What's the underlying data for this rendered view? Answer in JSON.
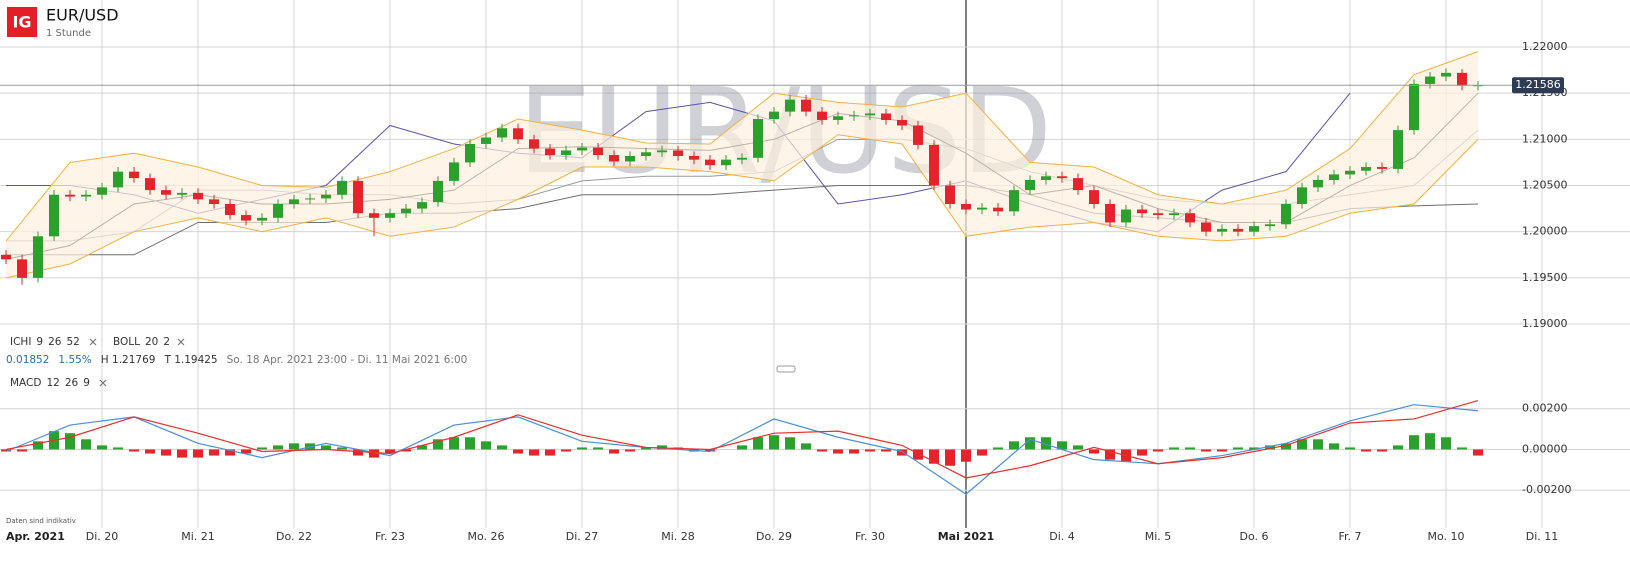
{
  "header": {
    "logo": "IG",
    "symbol": "EUR/USD",
    "interval": "1 Stunde"
  },
  "chart_data": [
    {
      "type": "candlestick",
      "xlim": [
        -0.375,
        93.625
      ],
      "ylim": [
        1.18827,
        1.22509
      ],
      "yticks": [
        {
          "value": 1.22,
          "label": "1.22000"
        },
        {
          "value": 1.215,
          "label": "1.21500"
        },
        {
          "value": 1.21,
          "label": "1.21000"
        },
        {
          "value": 1.205,
          "label": "1.20500"
        },
        {
          "value": 1.2,
          "label": "1.20000"
        },
        {
          "value": 1.195,
          "label": "1.19500"
        },
        {
          "value": 1.19,
          "label": "1.19000"
        }
      ],
      "xticks": [
        {
          "value": 0,
          "label": "Apr. 2021"
        },
        {
          "value": 6,
          "label": "Di. 20"
        },
        {
          "value": 12,
          "label": "Mi. 21"
        },
        {
          "value": 18,
          "label": "Do. 22"
        },
        {
          "value": 24,
          "label": "Fr. 23"
        },
        {
          "value": 30,
          "label": "Mo. 26"
        },
        {
          "value": 36,
          "label": "Di. 27"
        },
        {
          "value": 42,
          "label": "Mi. 28"
        },
        {
          "value": 48,
          "label": "Do. 29"
        },
        {
          "value": 54,
          "label": "Fr. 30"
        },
        {
          "value": 60,
          "label": "Mai 2021"
        },
        {
          "value": 66,
          "label": "Di. 4"
        },
        {
          "value": 72,
          "label": "Mi. 5"
        },
        {
          "value": 78,
          "label": "Do. 6"
        },
        {
          "value": 84,
          "label": "Fr. 7"
        },
        {
          "value": 90,
          "label": "Mo. 10"
        },
        {
          "value": 96,
          "label": "Di. 11"
        }
      ],
      "grid": true,
      "up_color": "#2ca02c",
      "down_color": "#e3242b",
      "open": [
        1.1975,
        1.197,
        1.195,
        1.1995,
        1.204,
        1.2038,
        1.204,
        1.2048,
        1.2065,
        1.2058,
        1.2045,
        1.204,
        1.2042,
        1.2035,
        1.203,
        1.2018,
        1.2012,
        1.2015,
        1.203,
        1.2035,
        1.2036,
        1.204,
        1.2055,
        1.202,
        1.2015,
        1.202,
        1.2025,
        1.2032,
        1.2055,
        1.2075,
        1.2095,
        1.2102,
        1.2112,
        1.21,
        1.209,
        1.2083,
        1.2088,
        1.2091,
        1.2083,
        1.2076,
        1.2082,
        1.2086,
        1.2088,
        1.2082,
        1.2078,
        1.2072,
        1.2078,
        1.208,
        1.2122,
        1.213,
        1.2143,
        1.213,
        1.2121,
        1.2125,
        1.2126,
        1.2128,
        1.2121,
        1.2115,
        1.2094,
        1.205,
        1.203,
        1.2024,
        1.2026,
        1.2022,
        1.2045,
        1.2056,
        1.206,
        1.2058,
        1.2045,
        1.203,
        1.201,
        1.2024,
        1.202,
        1.2018,
        1.202,
        1.201,
        1.2,
        1.2003,
        1.2,
        1.2006,
        1.2008,
        1.203,
        1.2048,
        1.2056,
        1.2062,
        1.2066,
        1.207,
        1.2068,
        1.211,
        1.216,
        1.2168,
        1.2172,
        1.2158
      ],
      "high": [
        1.198,
        1.1975,
        1.2,
        1.2045,
        1.2045,
        1.2045,
        1.2053,
        1.207,
        1.207,
        1.2063,
        1.205,
        1.2047,
        1.2047,
        1.204,
        1.2035,
        1.2023,
        1.202,
        1.2035,
        1.204,
        1.2041,
        1.2045,
        1.206,
        1.206,
        1.2025,
        1.2025,
        1.203,
        1.2037,
        1.206,
        1.208,
        1.21,
        1.2107,
        1.2117,
        1.2117,
        1.2105,
        1.2095,
        1.2093,
        1.2096,
        1.2096,
        1.2088,
        1.2087,
        1.2091,
        1.2093,
        1.2093,
        1.2087,
        1.2083,
        1.2083,
        1.2085,
        1.2127,
        1.2135,
        1.2148,
        1.2148,
        1.2135,
        1.213,
        1.2131,
        1.2133,
        1.2133,
        1.2126,
        1.212,
        1.2099,
        1.2055,
        1.2035,
        1.2031,
        1.2031,
        1.205,
        1.2061,
        1.2065,
        1.2065,
        1.2063,
        1.205,
        1.2035,
        1.2029,
        1.2029,
        1.2025,
        1.2025,
        1.2025,
        1.2015,
        1.2008,
        1.2008,
        1.2011,
        1.2013,
        1.2035,
        1.2053,
        1.2061,
        1.2067,
        1.2071,
        1.2075,
        1.2075,
        1.2115,
        1.2165,
        1.2173,
        1.21769,
        1.2176,
        1.2163
      ],
      "low": [
        1.1965,
        1.19425,
        1.1945,
        1.199,
        1.2033,
        1.2033,
        1.2035,
        1.2043,
        1.2053,
        1.204,
        1.2035,
        1.2035,
        1.203,
        1.2025,
        1.2013,
        1.2007,
        1.2007,
        1.201,
        1.2025,
        1.203,
        1.2031,
        1.2035,
        1.2015,
        1.1995,
        1.201,
        1.2015,
        1.202,
        1.2027,
        1.205,
        1.207,
        1.209,
        1.2097,
        1.2095,
        1.2085,
        1.2078,
        1.2078,
        1.2083,
        1.2078,
        1.2071,
        1.2071,
        1.2077,
        1.2081,
        1.2077,
        1.2073,
        1.2067,
        1.2067,
        1.2073,
        1.2075,
        1.2117,
        1.2125,
        1.2125,
        1.2116,
        1.2116,
        1.212,
        1.2121,
        1.2116,
        1.211,
        1.2089,
        1.2045,
        1.2025,
        1.2019,
        1.2019,
        1.2017,
        1.2017,
        1.204,
        1.2051,
        1.2053,
        1.204,
        1.2025,
        1.2005,
        1.2005,
        1.2015,
        1.2013,
        1.2013,
        1.2005,
        1.1995,
        1.1995,
        1.1995,
        1.1995,
        1.2001,
        1.2003,
        1.2025,
        1.2043,
        1.2051,
        1.2057,
        1.2061,
        1.2063,
        1.2063,
        1.2105,
        1.2155,
        1.2163,
        1.2153,
        1.2153
      ],
      "close": [
        1.197,
        1.195,
        1.1995,
        1.204,
        1.2038,
        1.204,
        1.2048,
        1.2065,
        1.2058,
        1.2045,
        1.204,
        1.2042,
        1.2035,
        1.203,
        1.2018,
        1.2012,
        1.2015,
        1.203,
        1.2035,
        1.2036,
        1.204,
        1.2055,
        1.202,
        1.2015,
        1.202,
        1.2025,
        1.2032,
        1.2055,
        1.2075,
        1.2095,
        1.2102,
        1.2112,
        1.21,
        1.209,
        1.2083,
        1.2088,
        1.2091,
        1.2083,
        1.2076,
        1.2082,
        1.2086,
        1.2088,
        1.2082,
        1.2078,
        1.2072,
        1.2078,
        1.208,
        1.2122,
        1.213,
        1.2143,
        1.213,
        1.2121,
        1.2125,
        1.2126,
        1.2128,
        1.2121,
        1.2115,
        1.2094,
        1.205,
        1.203,
        1.2024,
        1.2026,
        1.2022,
        1.2045,
        1.2056,
        1.206,
        1.2058,
        1.2045,
        1.203,
        1.201,
        1.2024,
        1.202,
        1.2018,
        1.202,
        1.201,
        1.2,
        1.2003,
        1.2,
        1.2006,
        1.2008,
        1.203,
        1.2048,
        1.2056,
        1.2062,
        1.2066,
        1.207,
        1.2068,
        1.211,
        1.216,
        1.2168,
        1.2172,
        1.2158,
        1.21586
      ],
      "last_price": 1.21586,
      "indicators": [
        {
          "label": "ICHI",
          "params": [
            9,
            26,
            52
          ],
          "x": [
            0,
            4,
            8,
            12,
            16,
            20,
            24,
            28,
            32,
            36,
            40,
            44,
            48,
            52,
            56,
            60,
            64,
            68,
            72,
            76,
            80,
            84,
            88,
            92
          ],
          "series": [
            {
              "color": "#9a9a9a",
              "values": [
                1.199,
                1.199,
                1.2,
                1.2045,
                1.2045,
                1.204,
                1.204,
                1.203,
                1.2035,
                1.2055,
                1.206,
                1.206,
                1.2065,
                1.21,
                1.21,
                1.209,
                1.2065,
                1.205,
                1.2035,
                1.203,
                1.203,
                1.204,
                1.205,
                1.211
              ]
            },
            {
              "color": "#6e6e6e",
              "values": [
                1.1975,
                1.1975,
                1.1975,
                1.201,
                1.201,
                1.201,
                1.202,
                1.202,
                1.2025,
                1.204,
                1.204,
                1.204,
                1.2045,
                1.205,
                1.205,
                1.205,
                1.204,
                1.202,
                1.2015,
                1.201,
                1.201,
                1.2025,
                1.2028,
                1.203
              ]
            },
            {
              "color": "#222222",
              "values": [
                1.197,
                1.1985,
                1.203,
                1.204,
                1.203,
                1.203,
                1.2035,
                1.2045,
                1.209,
                1.2092,
                1.209,
                1.2088,
                1.21,
                1.2128,
                1.212,
                1.2085,
                1.204,
                1.205,
                1.2025,
                1.201,
                1.201,
                1.205,
                1.208,
                1.215
              ]
            },
            {
              "color": "#5a52a8",
              "values": [
                1.205,
                1.205,
                1.204,
                1.202,
                1.2035,
                1.205,
                1.2115,
                1.2095,
                1.2085,
                1.208,
                1.213,
                1.214,
                1.212,
                1.203,
                1.204,
                1.2055,
                1.203,
                1.201,
                1.2,
                1.2045,
                1.2065,
                1.215,
                null,
                null
              ]
            }
          ]
        },
        {
          "label": "BOLL",
          "params": [
            20,
            2
          ],
          "fill": "#fdf1de",
          "x": [
            0,
            4,
            8,
            12,
            16,
            20,
            24,
            28,
            32,
            36,
            40,
            44,
            48,
            52,
            56,
            60,
            64,
            68,
            72,
            76,
            80,
            84,
            88,
            92
          ],
          "series": [
            {
              "color": "#f5b041",
              "values": [
                1.199,
                1.2075,
                1.2085,
                1.207,
                1.205,
                1.2048,
                1.2065,
                1.209,
                1.2122,
                1.211,
                1.2096,
                1.2095,
                1.215,
                1.214,
                1.2135,
                1.215,
                1.2075,
                1.207,
                1.204,
                1.203,
                1.2045,
                1.209,
                1.217,
                1.2195
              ]
            },
            {
              "color": "#f5b041",
              "values": [
                1.195,
                1.1965,
                1.2,
                1.2015,
                1.2,
                1.2015,
                1.1995,
                1.2005,
                1.2035,
                1.207,
                1.207,
                1.2065,
                1.2055,
                1.2105,
                1.2095,
                1.1995,
                1.2005,
                1.201,
                1.1995,
                1.199,
                1.1995,
                1.202,
                1.203,
                1.21
              ]
            }
          ]
        }
      ],
      "stats": {
        "change": 0.01852,
        "change_pct": {
          "value": 1.55,
          "label": "1.55%"
        },
        "high": {
          "value": 1.21769,
          "label": "H 1.21769"
        },
        "low": {
          "value": 1.19425,
          "label": "T 1.19425"
        },
        "range": "So. 18 Apr. 2021 23:00 - Di. 11 Mai 2021 6:00"
      }
    },
    {
      "type": "macd",
      "label": "MACD",
      "params": [
        12,
        26,
        9
      ],
      "ylim": [
        -0.00371,
        0.00351
      ],
      "yticks": [
        {
          "value": 0.002,
          "label": "0.00200"
        },
        {
          "value": 0,
          "label": "0.00000"
        },
        {
          "value": -0.002,
          "label": "-0.00200"
        }
      ],
      "x": [
        0,
        4,
        8,
        12,
        16,
        20,
        24,
        28,
        32,
        36,
        40,
        44,
        48,
        52,
        56,
        60,
        64,
        68,
        72,
        76,
        80,
        84,
        88,
        92
      ],
      "series": [
        {
          "color": "#4a90d9",
          "values": [
            -0.0001,
            0.0012,
            0.0016,
            0.0003,
            -0.0004,
            0.0003,
            -0.0003,
            0.0012,
            0.0016,
            0.0004,
            0.0001,
            -0.0001,
            0.0015,
            0.0006,
            -0.0001,
            -0.0022,
            0.0005,
            -0.0005,
            -0.0007,
            -0.0003,
            0.0003,
            0.0014,
            0.0022,
            0.0019
          ]
        },
        {
          "color": "#e8302a",
          "values": [
            0,
            0.0006,
            0.0016,
            0.0008,
            -0.0001,
            0,
            -0.0002,
            0.0006,
            0.0017,
            0.0007,
            0.0001,
            0,
            0.0008,
            0.0009,
            0.0002,
            -0.0014,
            -0.0008,
            0.0001,
            -0.0007,
            -0.0004,
            0.0002,
            0.0013,
            0.0015,
            0.0024
          ]
        }
      ],
      "histogram": [
        -0.0001,
        -0.0001,
        0.0004,
        0.0009,
        0.0008,
        0.0005,
        0.0002,
        0.0001,
        -0.0001,
        -0.0002,
        -0.0003,
        -0.0004,
        -0.0004,
        -0.0003,
        -0.0003,
        -0.0002,
        0.0001,
        0.0002,
        0.0003,
        0.0003,
        0.0002,
        0.0001,
        -0.0003,
        -0.0004,
        -0.0002,
        -0.0001,
        0.0002,
        0.0005,
        0.0006,
        0.0006,
        0.0004,
        0.0002,
        -0.0002,
        -0.0003,
        -0.0003,
        -0.0001,
        0.0001,
        0.0001,
        -0.0002,
        -0.0001,
        0.0001,
        0.0002,
        0.0001,
        -0.0001,
        -0.0001,
        0,
        0.0002,
        0.0006,
        0.0007,
        0.0006,
        0.0003,
        -0.0001,
        -0.0002,
        -0.0002,
        -0.0001,
        -0.0001,
        -0.0003,
        -0.0005,
        -0.0007,
        -0.0008,
        -0.0006,
        -0.0003,
        0.0001,
        0.0004,
        0.0006,
        0.0006,
        0.0004,
        0.0002,
        -0.0002,
        -0.0005,
        -0.0006,
        -0.0003,
        -0.0001,
        0.0001,
        0.0001,
        -0.0001,
        -0.0001,
        0.0001,
        0.0001,
        0.0002,
        0.0003,
        0.0005,
        0.0005,
        0.0003,
        0.0001,
        -0.0001,
        -0.0001,
        0.0002,
        0.0007,
        0.0008,
        0.0006,
        0.0001,
        -0.0003
      ],
      "pos_color": "#2ca02c",
      "neg_color": "#e3242b"
    }
  ],
  "footer": {
    "note": "Daten sind indikativ"
  }
}
